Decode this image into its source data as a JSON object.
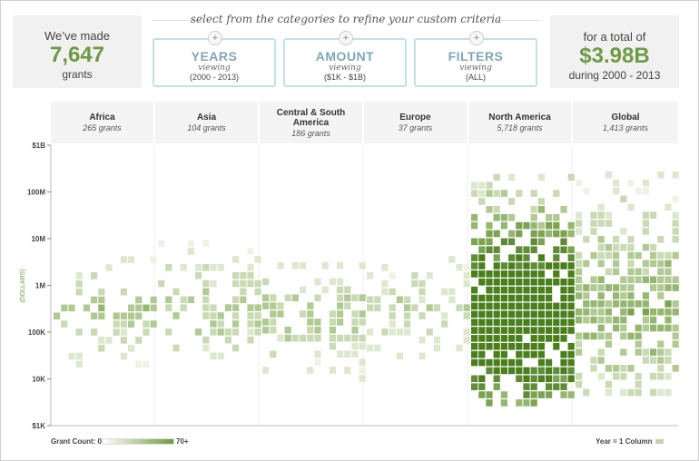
{
  "summary_left": {
    "line1": "We’ve made",
    "count": "7,647",
    "line3": "grants"
  },
  "criteria_title": "select from the categories to refine your custom criteria",
  "criteria": [
    {
      "name": "YEARS",
      "viewing": "viewing",
      "range": "(2000 - 2013)",
      "plus": "+"
    },
    {
      "name": "AMOUNT",
      "viewing": "viewing",
      "range": "($1K - $1B)",
      "plus": "+"
    },
    {
      "name": "FILTERS",
      "viewing": "viewing",
      "range": "(ALL)",
      "plus": "+"
    }
  ],
  "summary_right": {
    "line1": "for a total of",
    "total": "$3.98B",
    "line3": "during 2000 - 2013"
  },
  "regions": [
    {
      "name": "Africa",
      "count": "265 grants"
    },
    {
      "name": "Asia",
      "count": "104 grants"
    },
    {
      "name": "Central & South America",
      "count": "186 grants"
    },
    {
      "name": "Europe",
      "count": "37 grants"
    },
    {
      "name": "North America",
      "count": "5,718 grants"
    },
    {
      "name": "Global",
      "count": "1,413 grants"
    }
  ],
  "legend": {
    "label": "Grant Count: 0",
    "max": "70+",
    "year_note": "Year = 1 Column"
  },
  "colors": {
    "accent": "#6e9a44",
    "criteria_border": "#c3e1e8",
    "cell_max": "#4a7f1c"
  },
  "chart_data": {
    "type": "heatmap",
    "ylabel": "(DOLLARS)",
    "y_scale": "log",
    "ylim": [
      1000,
      1000000000
    ],
    "y_ticks": [
      "$1K",
      "10K",
      "100K",
      "1M",
      "10M",
      "100M",
      "$1B"
    ],
    "categories": [
      "Africa",
      "Asia",
      "Central & South America",
      "Europe",
      "North America",
      "Global"
    ],
    "x_unit": "year (2000-2013), one column per year",
    "series": [
      {
        "name": "Africa",
        "grants": 265,
        "min": 20000,
        "max": 5000000,
        "peak": 300000
      },
      {
        "name": "Asia",
        "grants": 104,
        "min": 30000,
        "max": 10000000,
        "peak": 300000
      },
      {
        "name": "Central & South America",
        "grants": 186,
        "min": 10000,
        "max": 3000000,
        "peak": 200000
      },
      {
        "name": "Europe",
        "grants": 37,
        "min": 30000,
        "max": 5000000,
        "peak": 300000
      },
      {
        "name": "North America",
        "grants": 5718,
        "min": 3000,
        "max": 300000000,
        "peak": 200000
      },
      {
        "name": "Global",
        "grants": 1413,
        "min": 5000,
        "max": 300000000,
        "peak": 300000
      }
    ],
    "grid": false,
    "legend_position": "bottom"
  }
}
